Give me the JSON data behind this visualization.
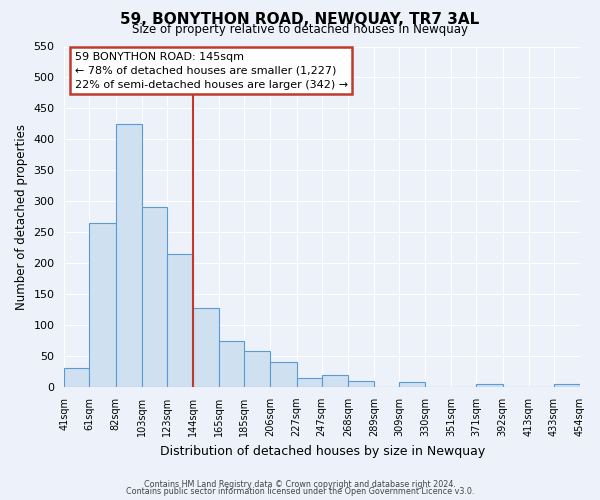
{
  "title": "59, BONYTHON ROAD, NEWQUAY, TR7 3AL",
  "subtitle": "Size of property relative to detached houses in Newquay",
  "xlabel": "Distribution of detached houses by size in Newquay",
  "ylabel": "Number of detached properties",
  "bar_edges": [
    41,
    61,
    82,
    103,
    123,
    144,
    165,
    185,
    206,
    227,
    247,
    268,
    289,
    309,
    330,
    351,
    371,
    392,
    413,
    433,
    454
  ],
  "bar_heights": [
    30,
    265,
    425,
    290,
    215,
    128,
    75,
    58,
    40,
    15,
    20,
    10,
    0,
    8,
    0,
    0,
    5,
    0,
    0,
    5
  ],
  "bar_color": "#cfe0f0",
  "bar_edge_color": "#5b9bd5",
  "vline_x": 144,
  "vline_color": "#c0392b",
  "annotation_box_title": "59 BONYTHON ROAD: 145sqm",
  "annotation_line1": "← 78% of detached houses are smaller (1,227)",
  "annotation_line2": "22% of semi-detached houses are larger (342) →",
  "annotation_box_color": "#c0392b",
  "ylim": [
    0,
    550
  ],
  "yticks": [
    0,
    50,
    100,
    150,
    200,
    250,
    300,
    350,
    400,
    450,
    500,
    550
  ],
  "tick_labels": [
    "41sqm",
    "61sqm",
    "82sqm",
    "103sqm",
    "123sqm",
    "144sqm",
    "165sqm",
    "185sqm",
    "206sqm",
    "227sqm",
    "247sqm",
    "268sqm",
    "289sqm",
    "309sqm",
    "330sqm",
    "351sqm",
    "371sqm",
    "392sqm",
    "413sqm",
    "433sqm",
    "454sqm"
  ],
  "footnote1": "Contains HM Land Registry data © Crown copyright and database right 2024.",
  "footnote2": "Contains public sector information licensed under the Open Government Licence v3.0.",
  "bg_color": "#edf2fa",
  "plot_bg_color": "#edf2fa",
  "grid_color": "#ffffff"
}
